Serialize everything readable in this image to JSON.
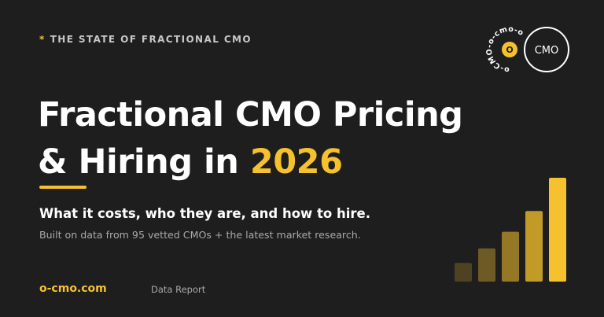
{
  "header": {
    "eyebrow_star": "*",
    "eyebrow": "THE STATE OF FRACTIONAL CMO"
  },
  "logo": {
    "ring_text": "o-CMO-o-cmo-o",
    "center_letter": "O",
    "badge_text": "CMO",
    "accent_color": "#f5c12e"
  },
  "hero": {
    "title_line1": "Fractional CMO Pricing",
    "title_line2_prefix": "& Hiring in ",
    "title_year": "2026",
    "subtitle": "What it costs, who they are, and how to hire.",
    "description": "Built on data from 95 vetted CMOs + the latest market research."
  },
  "footer": {
    "site": "o-cmo.com",
    "report_type": "Data Report"
  },
  "decorative_bars": {
    "relative_levels": [
      0.18,
      0.32,
      0.48,
      0.68,
      1.0
    ],
    "colors": [
      "#4e4222",
      "#6e5a25",
      "#957826",
      "#c19a28",
      "#f5c12e"
    ]
  },
  "colors": {
    "background": "#1e1e1e",
    "accent": "#f5c12e",
    "text": "#ffffff",
    "muted": "#a9a9a9"
  }
}
